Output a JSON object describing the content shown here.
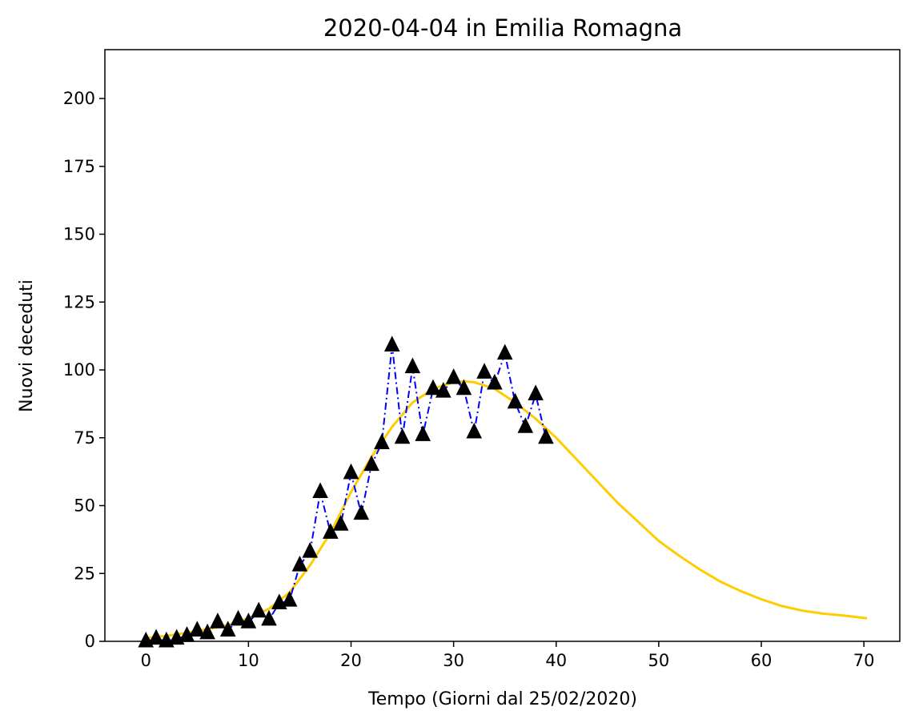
{
  "chart_data": {
    "type": "line",
    "title": "2020-04-04 in Emilia Romagna",
    "xlabel": "Tempo (Giorni dal 25/02/2020)",
    "ylabel": "Nuovi deceduti",
    "xlim": [
      -4,
      73.5
    ],
    "ylim": [
      0,
      218
    ],
    "xticks": [
      0,
      10,
      20,
      30,
      40,
      50,
      60,
      70
    ],
    "yticks": [
      0,
      25,
      50,
      75,
      100,
      125,
      150,
      175,
      200
    ],
    "grid": false,
    "series": [
      {
        "kind": "observed",
        "color": "#0000ff",
        "marker_color": "#000000",
        "linestyle": "dash-dot",
        "marker": "triangle-up",
        "x": [
          0,
          1,
          2,
          3,
          4,
          5,
          6,
          7,
          8,
          9,
          10,
          11,
          12,
          13,
          14,
          15,
          16,
          17,
          18,
          19,
          20,
          21,
          22,
          23,
          24,
          25,
          26,
          27,
          28,
          29,
          30,
          31,
          32,
          33,
          34,
          35,
          36,
          37,
          38,
          39
        ],
        "y": [
          0,
          1,
          0,
          1,
          2,
          4,
          3,
          7,
          4,
          8,
          7,
          11,
          8,
          14,
          15,
          28,
          33,
          55,
          40,
          43,
          62,
          47,
          65,
          73,
          109,
          75,
          101,
          76,
          93,
          92,
          97,
          93,
          77,
          99,
          95,
          106,
          88,
          79,
          91,
          75
        ]
      },
      {
        "kind": "fit",
        "color": "#ffcc00",
        "linestyle": "solid",
        "x": [
          0,
          2,
          4,
          6,
          8,
          10,
          12,
          14,
          16,
          18,
          20,
          22,
          24,
          26,
          28,
          30,
          31,
          32,
          34,
          36,
          38,
          40,
          42,
          44,
          46,
          48,
          50,
          52,
          54,
          56,
          58,
          60,
          62,
          64,
          66,
          68,
          70.3
        ],
        "y": [
          1.2,
          2,
          3.2,
          4.5,
          6,
          8.5,
          12,
          18,
          28,
          40,
          55,
          68,
          79,
          88,
          93,
          95.5,
          95.8,
          95.5,
          93,
          88,
          82,
          75,
          67,
          59,
          51,
          44,
          37,
          31.5,
          26.5,
          22,
          18.5,
          15.5,
          13,
          11.3,
          10.2,
          9.5,
          8.5
        ]
      }
    ]
  }
}
